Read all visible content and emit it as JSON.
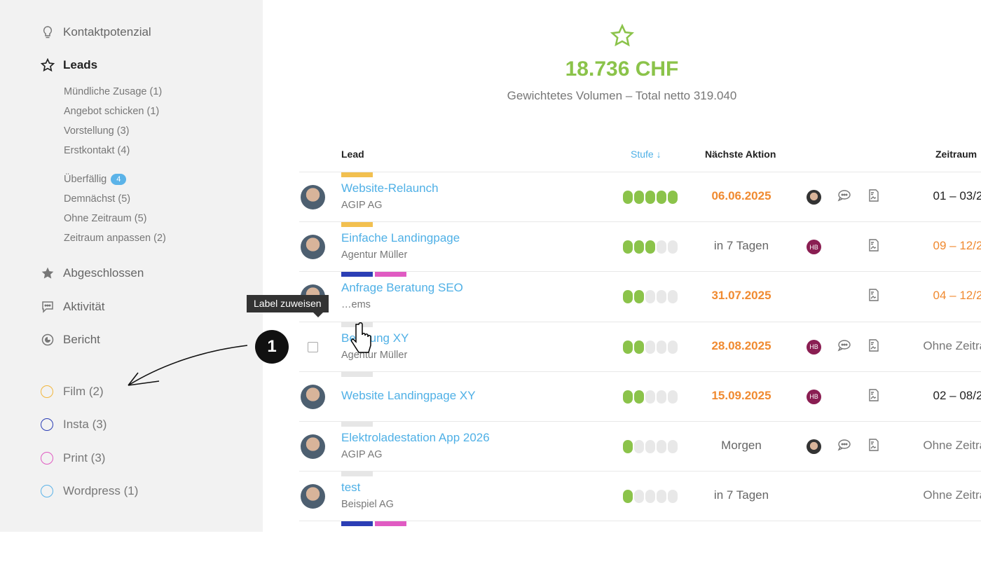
{
  "sidebar": {
    "nav": [
      {
        "label": "Kontaktpotenzial",
        "icon": "lightbulb-icon"
      },
      {
        "label": "Leads",
        "icon": "star-outline-icon"
      },
      {
        "label": "Abgeschlossen",
        "icon": "star-filled-icon"
      },
      {
        "label": "Aktivität",
        "icon": "chat-icon"
      },
      {
        "label": "Bericht",
        "icon": "chart-icon"
      }
    ],
    "lead_stages": [
      "Mündliche Zusage (1)",
      "Angebot schicken (1)",
      "Vorstellung (3)",
      "Erstkontakt (4)"
    ],
    "lead_filters": [
      {
        "label": "Überfällig",
        "badge": "4"
      },
      {
        "label": "Demnächst (5)"
      },
      {
        "label": "Ohne Zeitraum (5)"
      },
      {
        "label": "Zeitraum anpassen (2)"
      }
    ],
    "tags": [
      {
        "label": "Film (2)",
        "color": "#f2b63c"
      },
      {
        "label": "Insta (3)",
        "color": "#2b3eb5"
      },
      {
        "label": "Print (3)",
        "color": "#e05bc2"
      },
      {
        "label": "Wordpress (1)",
        "color": "#5bb3e8"
      }
    ]
  },
  "summary": {
    "icon": "star-outline-icon",
    "amount": "18.736 CHF",
    "subtitle": "Gewichtetes Volumen – Total netto 319.040",
    "color": "#8bc34a"
  },
  "table": {
    "headers": {
      "lead": "Lead",
      "stufe": "Stufe",
      "sort_icon": "arrow-down-icon",
      "aktion": "Nächste Aktion",
      "zeitraum": "Zeitraum"
    },
    "rows": [
      {
        "title": "Website-Relaunch",
        "company": "AGIP AG",
        "labels": [
          "#f2c050"
        ],
        "stage": 5,
        "action": "06.06.2025",
        "action_color": "#f08a30",
        "user": "photo",
        "comment": true,
        "zeitraum": "01 – 03/2",
        "zeit_color": "#222"
      },
      {
        "title": "Einfache Landingpage",
        "company": "Agentur Müller",
        "labels": [
          "#f2c050"
        ],
        "stage": 3,
        "action": "in 7 Tagen",
        "action_color": "#666",
        "user": "HB",
        "comment": false,
        "zeitraum": "09 – 12/2",
        "zeit_color": "#f08a30"
      },
      {
        "title": "Anfrage Beratung SEO",
        "company": "…ems",
        "labels": [
          "#2b3eb5",
          "#e05bc2"
        ],
        "stage": 2,
        "action": "31.07.2025",
        "action_color": "#f08a30",
        "user": "",
        "comment": false,
        "zeitraum": "04 – 12/2",
        "zeit_color": "#f08a30"
      },
      {
        "title": "Beratung XY",
        "company": "Agentur Müller",
        "labels": [
          "#e6e6e6"
        ],
        "stage": 2,
        "action": "28.08.2025",
        "action_color": "#f08a30",
        "user": "HB",
        "comment": true,
        "zeitraum": "Ohne Zeitrau",
        "zeit_color": "#777",
        "checkbox": true
      },
      {
        "title": "Website Landingpage XY",
        "company": "",
        "labels": [
          "#e6e6e6"
        ],
        "stage": 2,
        "action": "15.09.2025",
        "action_color": "#f08a30",
        "user": "HB",
        "comment": false,
        "zeitraum": "02 – 08/2",
        "zeit_color": "#222"
      },
      {
        "title": "Elektroladestation App 2026",
        "company": "AGIP AG",
        "labels": [
          "#e6e6e6"
        ],
        "stage": 1,
        "action": "Morgen",
        "action_color": "#666",
        "user": "photo",
        "comment": true,
        "zeitraum": "Ohne Zeitrau",
        "zeit_color": "#777"
      },
      {
        "title": "test",
        "company": "Beispiel AG",
        "labels": [
          "#e6e6e6"
        ],
        "stage": 1,
        "action": "in 7 Tagen",
        "action_color": "#666",
        "user": "",
        "comment": false,
        "doc": false,
        "zeitraum": "Ohne Zeitrau",
        "zeit_color": "#777"
      }
    ]
  },
  "tooltip": "Label zuweisen",
  "step_marker": "1"
}
